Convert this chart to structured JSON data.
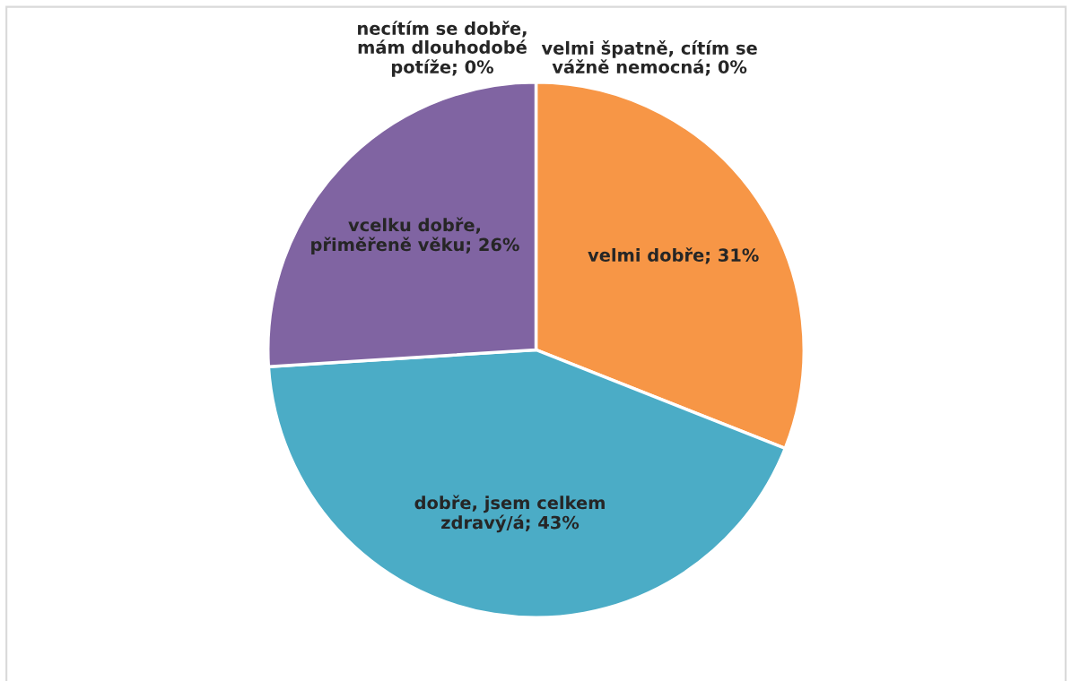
{
  "chart_data": {
    "type": "pie",
    "categories": [
      "velmi dobře; 31%",
      "dobře, jsem celkem\nzdravý/á; 43%",
      "vcelku dobře,\npřiměřeně věku; 26%",
      "necítím se dobře,\nmám dlouhodobé\npotíže; 0%",
      "velmi špatně, cítím se\nvážně nemocná; 0%"
    ],
    "values": [
      31,
      43,
      26,
      0,
      0
    ],
    "colors": [
      "#f79646",
      "#4bacc6",
      "#8064a2",
      "#c0504d",
      "#9bbb59"
    ]
  }
}
